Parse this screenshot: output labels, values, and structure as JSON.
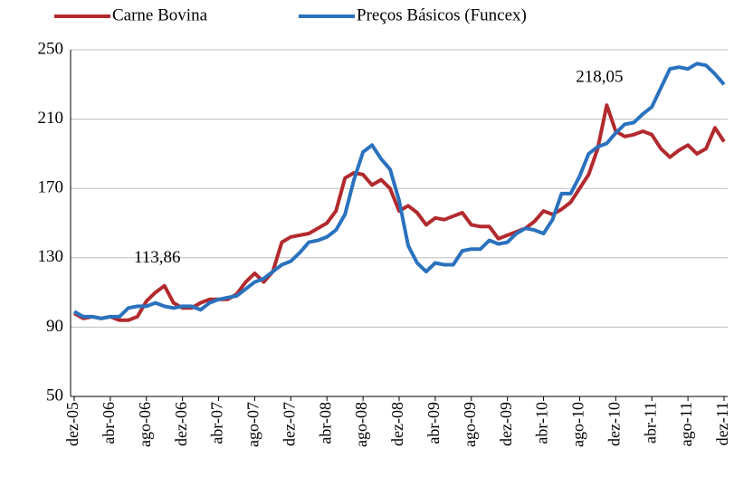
{
  "chart_data": {
    "type": "line",
    "categories": [
      "dez-05",
      null,
      null,
      null,
      "abr-06",
      null,
      null,
      null,
      "ago-06",
      null,
      null,
      null,
      "dez-06",
      null,
      null,
      null,
      "abr-07",
      null,
      null,
      null,
      "ago-07",
      null,
      null,
      null,
      "dez-07",
      null,
      null,
      null,
      "abr-08",
      null,
      null,
      null,
      "ago-08",
      null,
      null,
      null,
      "dez-08",
      null,
      null,
      null,
      "abr-09",
      null,
      null,
      null,
      "ago-09",
      null,
      null,
      null,
      "dez-09",
      null,
      null,
      null,
      "abr-10",
      null,
      null,
      null,
      "ago-10",
      null,
      null,
      null,
      "dez-10",
      null,
      null,
      null,
      "abr-11",
      null,
      null,
      null,
      "ago-11",
      null,
      null,
      null,
      "dez-11"
    ],
    "series": [
      {
        "name": "Carne Bovina",
        "color": "#b22a2e",
        "values": [
          98,
          95,
          96,
          95,
          96,
          94,
          94,
          96,
          105,
          110,
          113.86,
          104,
          101,
          101,
          104,
          106,
          106,
          106,
          109,
          116,
          121,
          116,
          122,
          139,
          142,
          143,
          144,
          147,
          150,
          157,
          176,
          179,
          178,
          172,
          175,
          170,
          157,
          160,
          156,
          149,
          153,
          152,
          154,
          156,
          149,
          148,
          148,
          141,
          143,
          145,
          147,
          151,
          157,
          155,
          158,
          162,
          170,
          178,
          193,
          218.05,
          203,
          200,
          201,
          203,
          201,
          193,
          188,
          192,
          195,
          190,
          193,
          205,
          197
        ],
        "value_labels": [
          null,
          null,
          null,
          null,
          null,
          null,
          null,
          null,
          null,
          null,
          "113,86",
          null,
          null,
          null,
          null,
          null,
          null,
          null,
          null,
          null,
          null,
          null,
          null,
          null,
          null,
          null,
          null,
          null,
          null,
          null,
          null,
          null,
          null,
          null,
          null,
          null,
          null,
          null,
          null,
          null,
          null,
          null,
          null,
          null,
          null,
          null,
          null,
          null,
          null,
          null,
          null,
          null,
          null,
          null,
          null,
          null,
          null,
          null,
          null,
          "218,05",
          null,
          null,
          null,
          null,
          null,
          null,
          null,
          null,
          null,
          null,
          null,
          null,
          null
        ]
      },
      {
        "name": "Preços Básicos (Funcex)",
        "color": "#2a72be",
        "values": [
          99,
          96,
          96,
          95,
          96,
          96,
          101,
          102,
          102,
          104,
          102,
          101,
          102,
          102,
          100,
          104,
          106,
          107,
          108,
          112,
          116,
          118,
          122,
          126,
          128,
          133,
          139,
          140,
          142,
          146,
          155,
          175,
          191,
          195,
          187,
          181,
          163,
          137,
          127,
          122,
          127,
          126,
          126,
          134,
          135,
          135,
          140,
          138,
          139,
          144,
          147,
          146,
          144,
          152,
          167,
          167,
          177,
          190,
          194,
          196,
          202,
          207,
          208,
          213,
          217,
          228,
          239,
          240,
          239,
          242,
          241,
          236,
          230
        ]
      }
    ],
    "ylim": [
      50,
      250
    ],
    "yticks": [
      50,
      90,
      130,
      170,
      210,
      250
    ],
    "grid": true
  }
}
